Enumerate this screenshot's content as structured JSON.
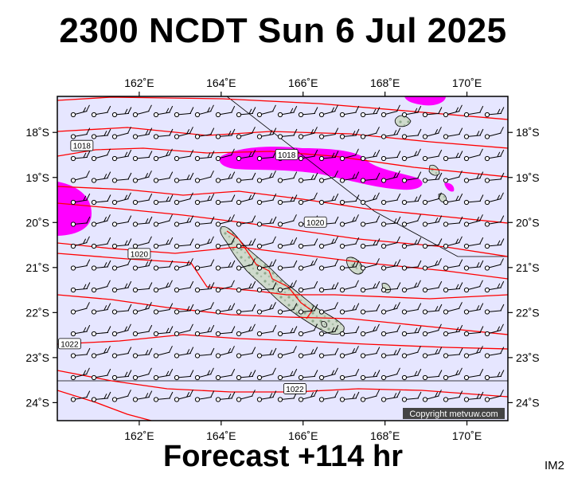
{
  "header": {
    "title": "2300 NCDT Sun 6 Jul 2025"
  },
  "footer": {
    "forecast": "Forecast +114 hr",
    "image_tag": "IM2"
  },
  "map": {
    "lon_range": [
      160.0,
      171.0
    ],
    "lat_range": [
      -24.4,
      -17.2
    ],
    "lon_ticks": [
      {
        "value": 162,
        "label": "162˚E"
      },
      {
        "value": 164,
        "label": "164˚E"
      },
      {
        "value": 166,
        "label": "166˚E"
      },
      {
        "value": 168,
        "label": "168˚E"
      },
      {
        "value": 170,
        "label": "170˚E"
      }
    ],
    "lat_ticks": [
      {
        "value": -18,
        "label": "18˚S"
      },
      {
        "value": -19,
        "label": "19˚S"
      },
      {
        "value": -20,
        "label": "20˚S"
      },
      {
        "value": -21,
        "label": "21˚S"
      },
      {
        "value": -22,
        "label": "22˚S"
      },
      {
        "value": -23,
        "label": "23˚S"
      },
      {
        "value": -24,
        "label": "24˚S"
      }
    ],
    "background_color": "#e6e6ff",
    "land_color": "#cfdacc",
    "isobar_color": "#ff0000",
    "precip_color": "#ff00ff",
    "isobar_labels": [
      {
        "text": "1018",
        "lon": 160.6,
        "lat": -18.3
      },
      {
        "text": "1018",
        "lon": 165.6,
        "lat": -18.5
      },
      {
        "text": "1020",
        "lon": 166.3,
        "lat": -20.0
      },
      {
        "text": "1020",
        "lon": 162.0,
        "lat": -20.7
      },
      {
        "text": "1022",
        "lon": 160.3,
        "lat": -22.7
      },
      {
        "text": "1022",
        "lon": 165.8,
        "lat": -23.7
      }
    ],
    "copyright": "Copyright metvuw.com"
  }
}
